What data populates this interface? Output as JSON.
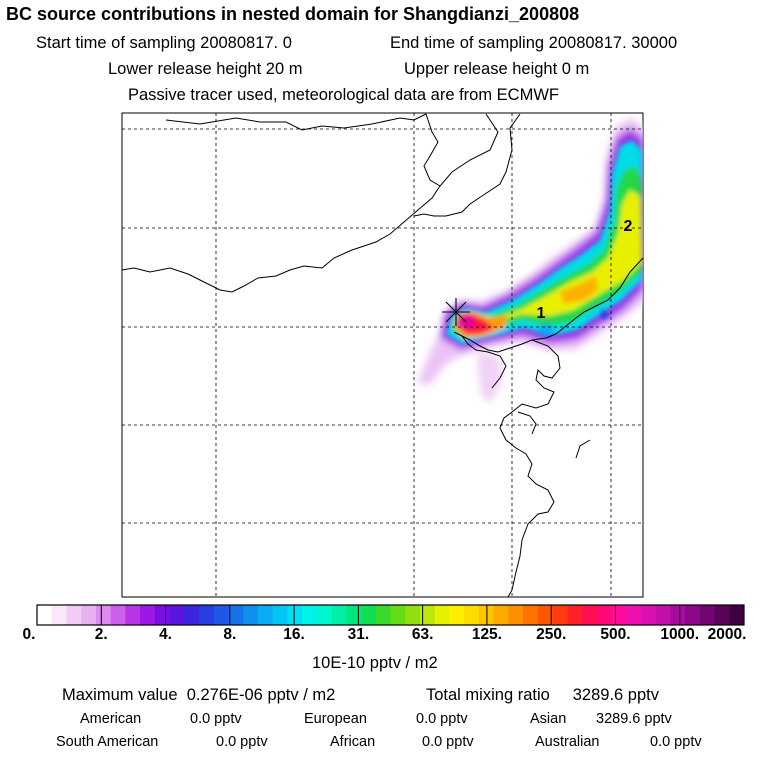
{
  "header": {
    "title": "BC  source contributions in nested domain for Shangdianzi_200808",
    "start_time": "Start time of sampling 20080817.     0",
    "end_time": "End time of sampling 20080817. 30000",
    "lower_release": "Lower release height   20 m",
    "upper_release": "Upper release height    0 m",
    "tracer_note": "Passive tracer used, meteorological data are from ECMWF"
  },
  "chart_data": {
    "type": "heatmap",
    "title": "BC  source contributions in nested domain for Shangdianzi_200808",
    "colorbar": {
      "ticks": [
        "0.",
        "2.",
        "4.",
        "8.",
        "16.",
        "31.",
        "63.",
        "125.",
        "250.",
        "500.",
        "1000.",
        "2000."
      ],
      "units": "10E-10 pptv / m2",
      "colors": [
        "#ffffff",
        "#fbe8fb",
        "#f3ccf6",
        "#e9b1f1",
        "#dd8cee",
        "#cc5fe9",
        "#b735e6",
        "#9e16e4",
        "#7a0ee0",
        "#5a16df",
        "#3c26dd",
        "#2a3de0",
        "#1f58e6",
        "#1773ea",
        "#118fef",
        "#0aabf3",
        "#03c6f6",
        "#00dff4",
        "#00f2ea",
        "#00f6d0",
        "#00f0a8",
        "#00e87c",
        "#10e050",
        "#3ada2c",
        "#64dc18",
        "#90e010",
        "#bce80a",
        "#e6f000",
        "#fff000",
        "#ffdc00",
        "#ffc400",
        "#ffaa00",
        "#ff9000",
        "#ff7400",
        "#ff5600",
        "#ff3c10",
        "#ff2028",
        "#ff1050",
        "#ff0878",
        "#ff0c9c",
        "#f010b0",
        "#dc10b0",
        "#c410a8",
        "#a80c9c",
        "#8c0888",
        "#720670",
        "#580458",
        "#3e0240"
      ]
    },
    "grid": true,
    "receptor_marker": "asterisk",
    "label_points": [
      "1",
      "2"
    ]
  },
  "summary": {
    "max_label": "Maximum value",
    "max_value": "0.276E-06 pptv / m2",
    "total_label": "Total mixing ratio",
    "total_value": "3289.6 pptv",
    "regions": [
      {
        "name": "American",
        "value": "0.0 pptv"
      },
      {
        "name": "European",
        "value": "0.0 pptv"
      },
      {
        "name": "Asian",
        "value": "3289.6 pptv"
      },
      {
        "name": "South American",
        "value": "0.0 pptv"
      },
      {
        "name": "African",
        "value": "0.0 pptv"
      },
      {
        "name": "Australian",
        "value": "0.0 pptv"
      }
    ]
  }
}
